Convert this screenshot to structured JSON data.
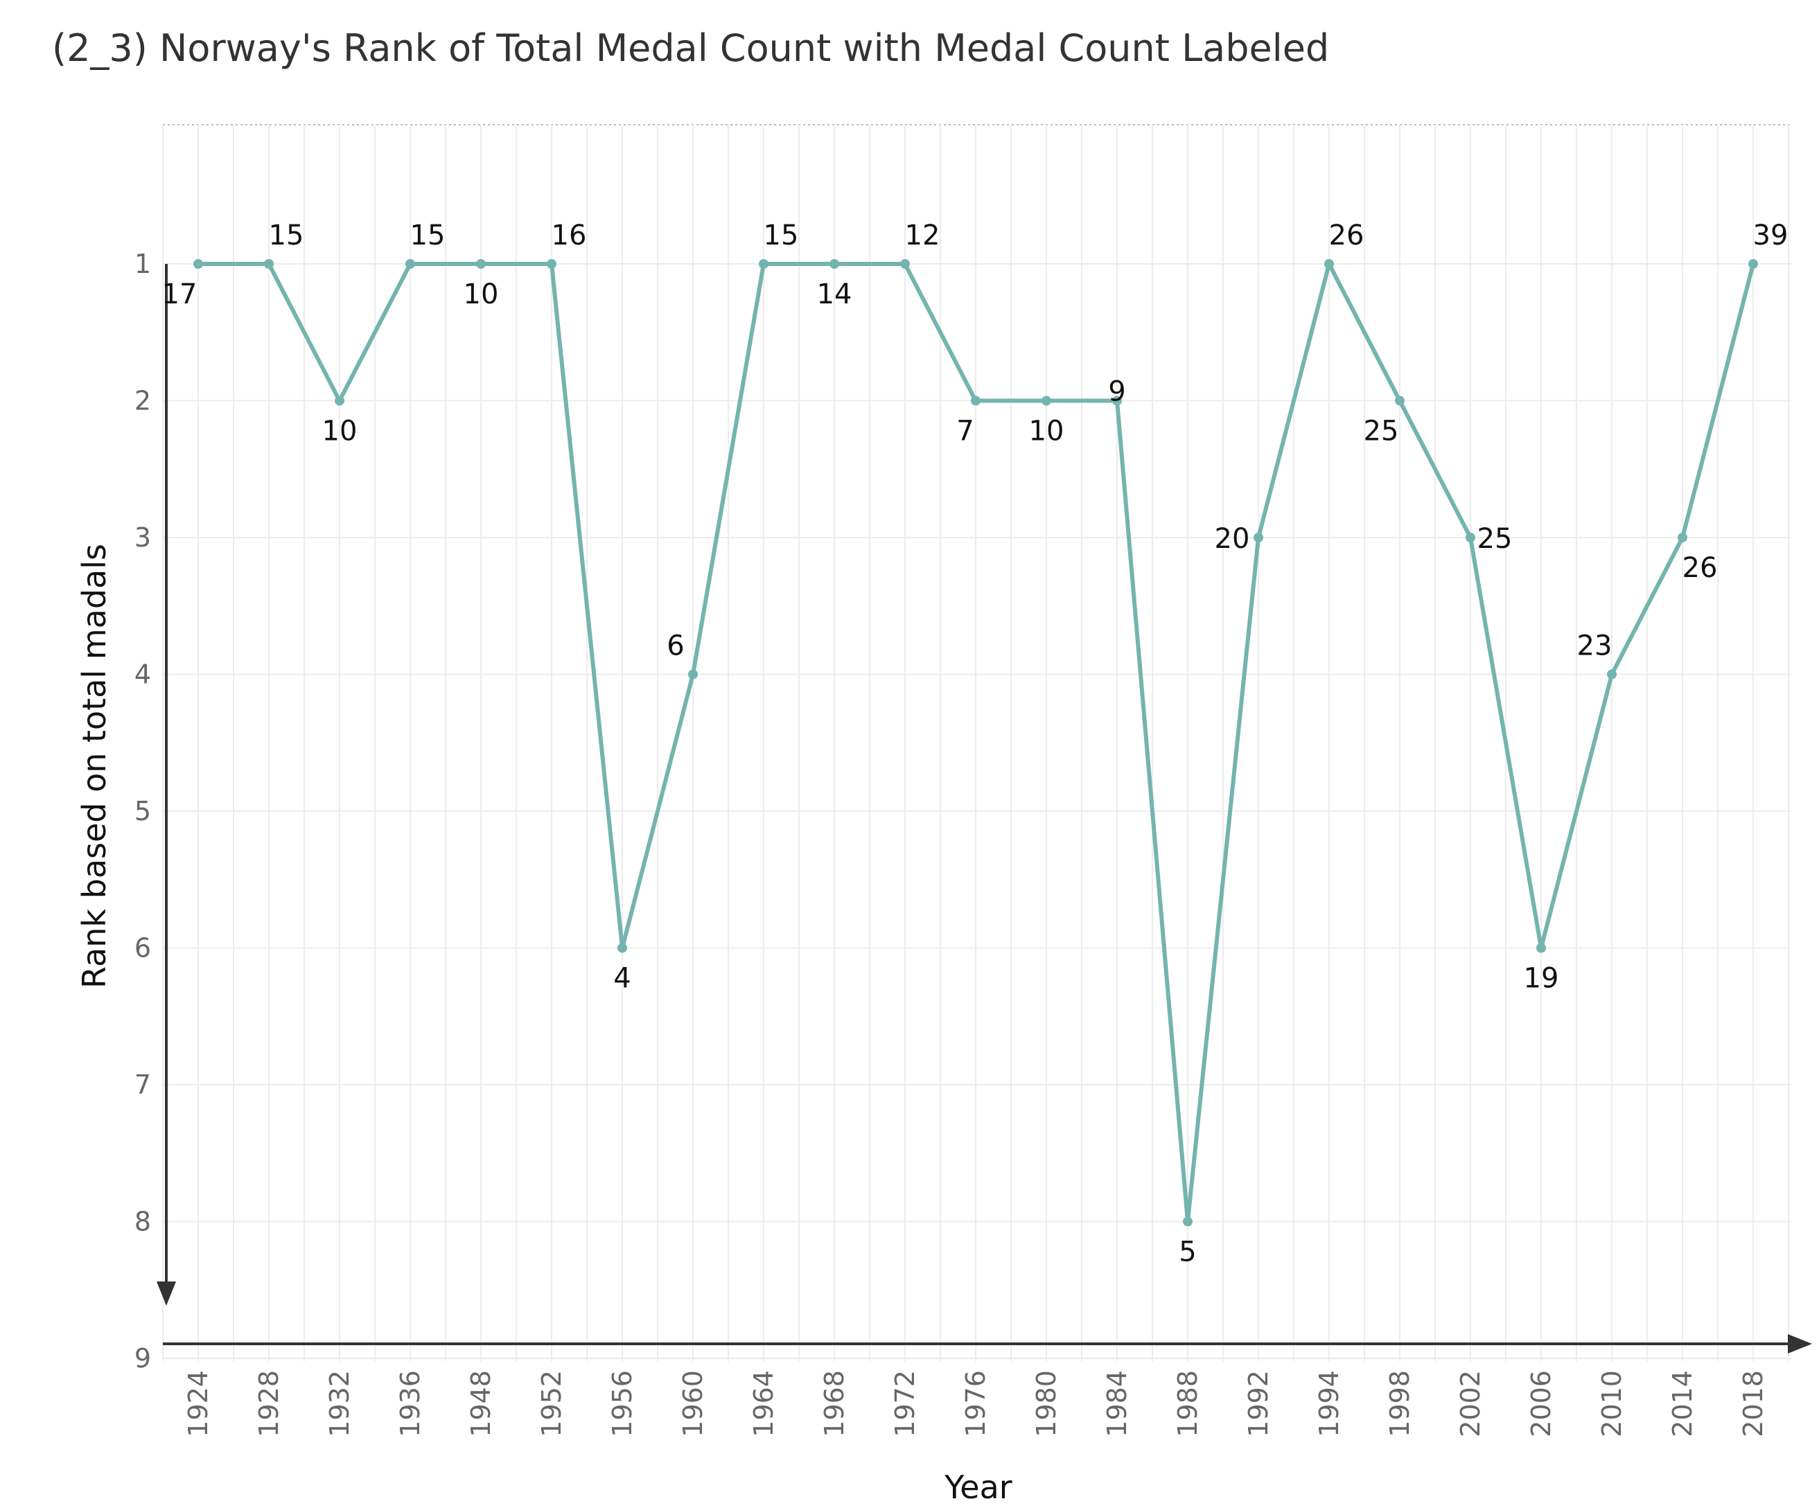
{
  "chart_data": {
    "type": "line",
    "title": "(2_3) Norway's Rank of Total Medal Count with Medal Count Labeled",
    "xlabel": "Year",
    "ylabel": "Rank based on total madals",
    "categories": [
      "1924",
      "1928",
      "1932",
      "1936",
      "1948",
      "1952",
      "1956",
      "1960",
      "1964",
      "1968",
      "1972",
      "1976",
      "1980",
      "1984",
      "1988",
      "1992",
      "1994",
      "1998",
      "2002",
      "2006",
      "2010",
      "2014",
      "2018"
    ],
    "series": [
      {
        "rank": [
          1,
          1,
          2,
          1,
          1,
          1,
          6,
          4,
          1,
          1,
          1,
          2,
          2,
          2,
          8,
          3,
          1,
          2,
          3,
          6,
          4,
          3,
          1
        ],
        "medal_count": [
          17,
          15,
          10,
          15,
          10,
          16,
          4,
          6,
          15,
          14,
          12,
          7,
          10,
          9,
          5,
          20,
          26,
          25,
          25,
          19,
          23,
          26,
          39
        ]
      }
    ],
    "yticks": [
      1,
      2,
      3,
      4,
      5,
      6,
      7,
      8,
      9
    ],
    "ylim": [
      0,
      9
    ],
    "y_reversed": true,
    "grid": true,
    "color": "#74b4ae"
  }
}
